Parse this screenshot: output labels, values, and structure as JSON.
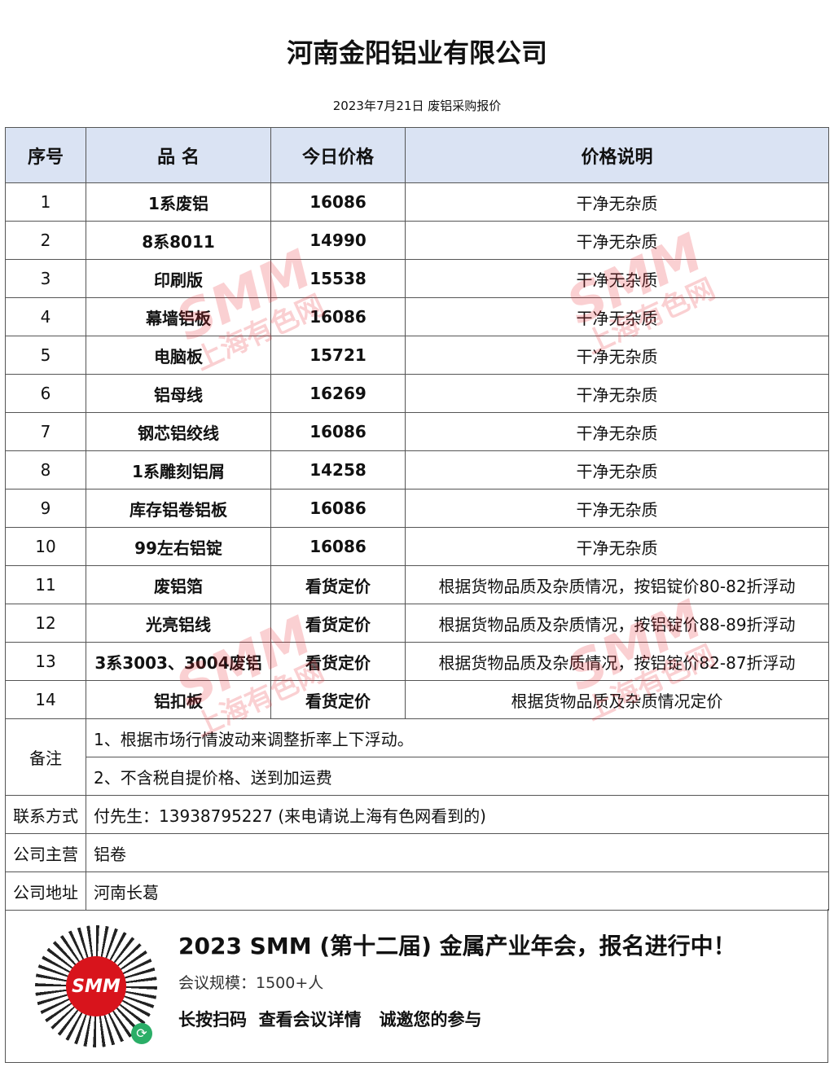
{
  "title": "河南金阳铝业有限公司",
  "subtitle": "2023年7月21日 废铝采购报价",
  "headers": [
    "序号",
    "品 名",
    "今日价格",
    "价格说明"
  ],
  "rows": [
    {
      "no": "1",
      "name": "1系废铝",
      "price": "16086",
      "note": "干净无杂质"
    },
    {
      "no": "2",
      "name": "8系8011",
      "price": "14990",
      "note": "干净无杂质"
    },
    {
      "no": "3",
      "name": "印刷版",
      "price": "15538",
      "note": "干净无杂质"
    },
    {
      "no": "4",
      "name": "幕墙铝板",
      "price": "16086",
      "note": "干净无杂质"
    },
    {
      "no": "5",
      "name": "电脑板",
      "price": "15721",
      "note": "干净无杂质"
    },
    {
      "no": "6",
      "name": "铝母线",
      "price": "16269",
      "note": "干净无杂质"
    },
    {
      "no": "7",
      "name": "钢芯铝绞线",
      "price": "16086",
      "note": "干净无杂质"
    },
    {
      "no": "8",
      "name": "1系雕刻铝屑",
      "price": "14258",
      "note": "干净无杂质"
    },
    {
      "no": "9",
      "name": "库存铝卷铝板",
      "price": "16086",
      "note": "干净无杂质"
    },
    {
      "no": "10",
      "name": "99左右铝锭",
      "price": "16086",
      "note": "干净无杂质"
    },
    {
      "no": "11",
      "name": "废铝箔",
      "price": "看货定价",
      "note": "根据货物品质及杂质情况，按铝锭价80-82折浮动"
    },
    {
      "no": "12",
      "name": "光亮铝线",
      "price": "看货定价",
      "note": "根据货物品质及杂质情况，按铝锭价88-89折浮动"
    },
    {
      "no": "13",
      "name": "3系3003、3004废铝",
      "price": "看货定价",
      "note": "根据货物品质及杂质情况，按铝锭价82-87折浮动"
    },
    {
      "no": "14",
      "name": "铝扣板",
      "price": "看货定价",
      "note": "根据货物品质及杂质情况定价"
    }
  ],
  "remarks": {
    "label": "备注",
    "items": [
      "1、根据市场行情波动来调整折率上下浮动。",
      "2、不含税自提价格、送到加运费"
    ]
  },
  "info": [
    {
      "label": "联系方式",
      "value": "付先生：13938795227 (来电请说上海有色网看到的)"
    },
    {
      "label": "公司主营",
      "value": "铝卷"
    },
    {
      "label": "公司地址",
      "value": "河南长葛"
    }
  ],
  "banner": {
    "headline": "2023 SMM (第十二届) 金属产业年会，报名进行中！",
    "scale": "会议规模：1500+人",
    "cta": "长按扫码  查看会议详情   诚邀您的参与",
    "qr_logo": "SMM"
  },
  "watermark": {
    "logo": "SMM",
    "text": "上海有色网",
    "color": "#e62832"
  },
  "colors": {
    "header_bg": "#dae3f3"
  }
}
